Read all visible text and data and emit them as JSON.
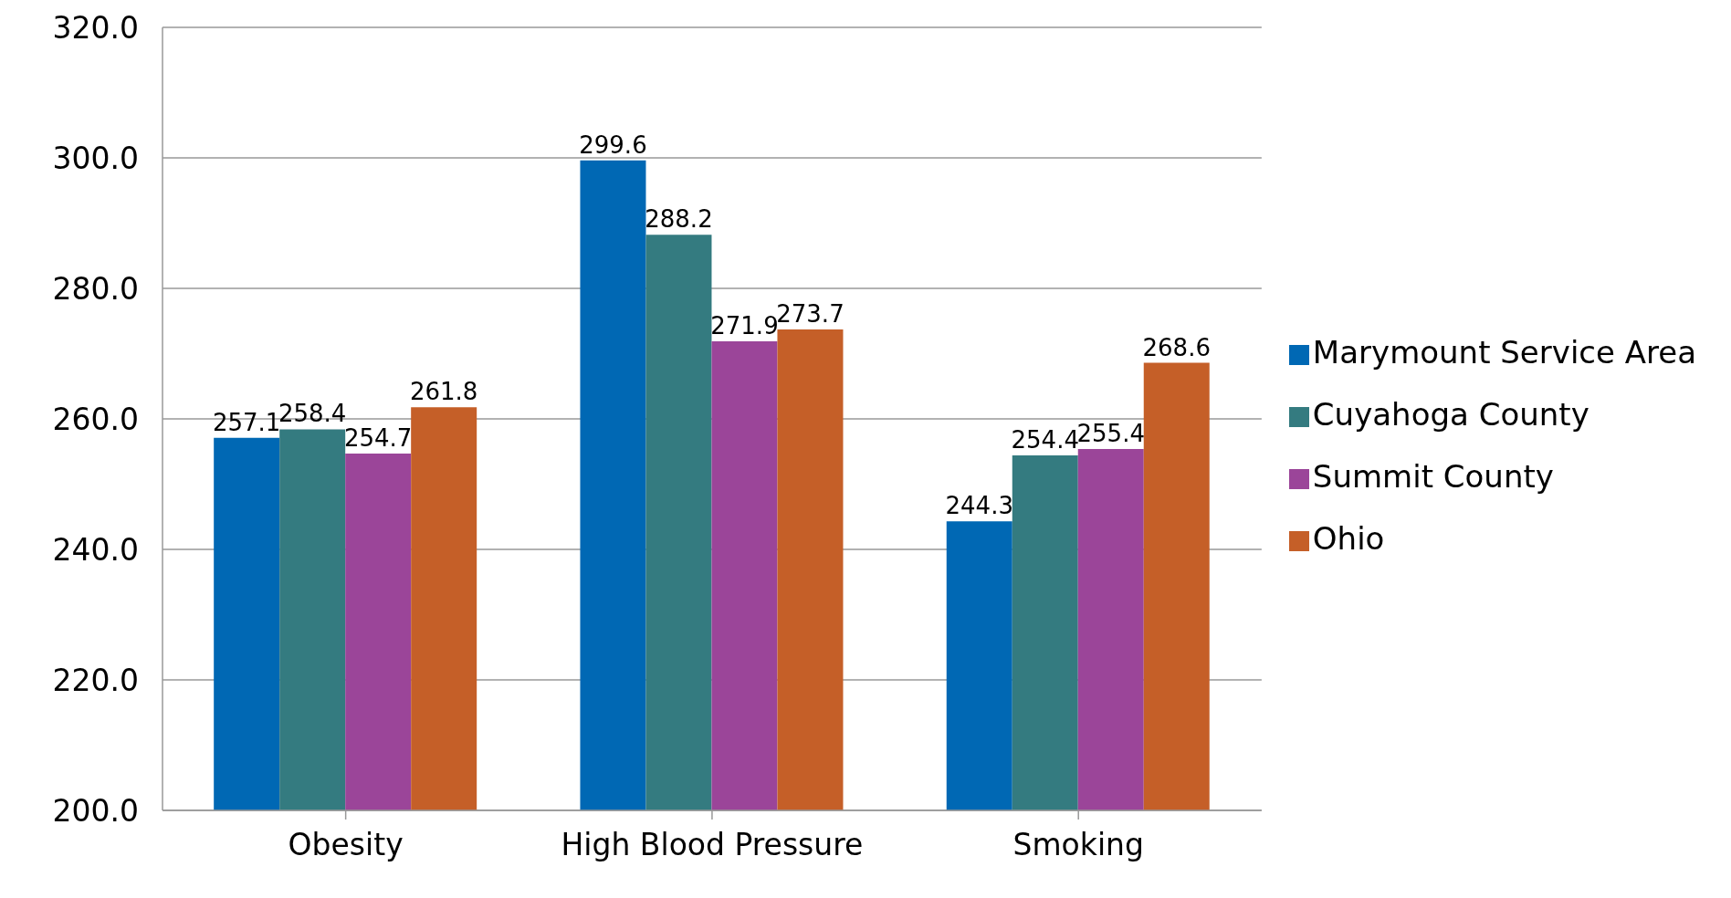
{
  "chart_data": {
    "type": "bar",
    "categories": [
      "Obesity",
      "High Blood Pressure",
      "Smoking"
    ],
    "series": [
      {
        "name": "Marymount Service Area",
        "color": "#0068b4",
        "values": [
          257.1,
          299.6,
          244.3
        ]
      },
      {
        "name": "Cuyahoga County",
        "color": "#347b80",
        "values": [
          258.4,
          288.2,
          254.4
        ]
      },
      {
        "name": "Summit County",
        "color": "#9b4599",
        "values": [
          254.7,
          271.9,
          255.4
        ]
      },
      {
        "name": "Ohio",
        "color": "#c55f28",
        "values": [
          261.8,
          273.7,
          268.6
        ]
      }
    ],
    "ylim": [
      200,
      320
    ],
    "yticks": [
      {
        "value": 200,
        "label": "200.0"
      },
      {
        "value": 220,
        "label": "220.0"
      },
      {
        "value": 240,
        "label": "240.0"
      },
      {
        "value": 260,
        "label": "260.0"
      },
      {
        "value": 280,
        "label": "280.0"
      },
      {
        "value": 300,
        "label": "300.0"
      },
      {
        "value": 320,
        "label": "320.0"
      }
    ],
    "grid": "y",
    "legend": "right",
    "data_labels": true
  }
}
